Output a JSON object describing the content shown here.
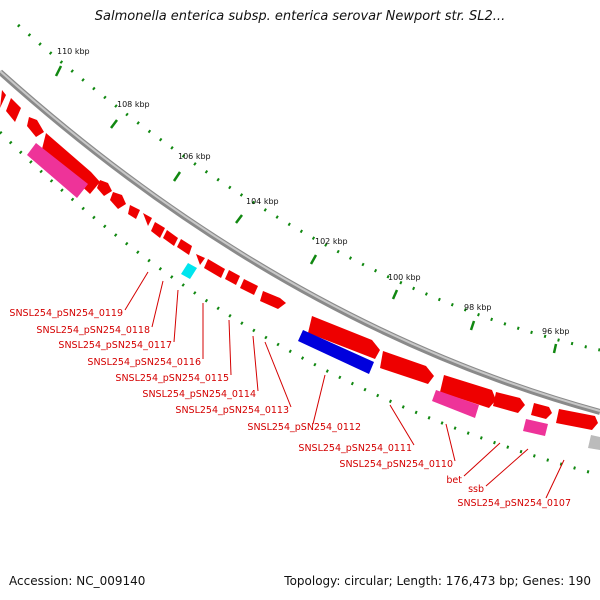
{
  "title": "Salmonella enterica subsp. enterica serovar Newport str. SL2...",
  "footer": {
    "accession": "Accession: NC_009140",
    "stats": "Topology: circular; Length: 176,473 bp; Genes: 190"
  },
  "colors": {
    "forward_gene": "#ee0000",
    "reverse_gene_pink": "#ee3399",
    "reverse_gene_blue": "#0000dd",
    "cyan_gene": "#00e5ee",
    "grey_gene": "#bbbbbb",
    "backbone": "#888888",
    "tick": "#118811",
    "label": "#d40000"
  },
  "kbp_labels": [
    "110 kbp",
    "108 kbp",
    "106 kbp",
    "104 kbp",
    "102 kbp",
    "100 kbp",
    "98 kbp",
    "96 kbp"
  ],
  "gene_labels": [
    "SNSL254_pSN254_0119",
    "SNSL254_pSN254_0118",
    "SNSL254_pSN254_0117",
    "SNSL254_pSN254_0116",
    "SNSL254_pSN254_0115",
    "SNSL254_pSN254_0114",
    "SNSL254_pSN254_0113",
    "SNSL254_pSN254_0112",
    "SNSL254_pSN254_0111",
    "SNSL254_pSN254_0110",
    "bet",
    "ssb",
    "SNSL254_pSN254_0107"
  ]
}
